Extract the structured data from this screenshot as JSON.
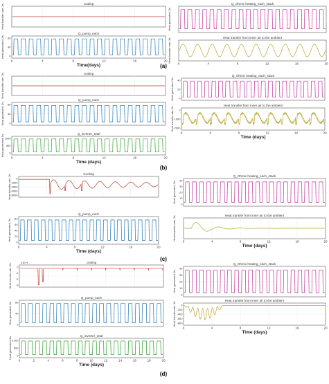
{
  "figure": {
    "panels": [
      {
        "label": "(a)",
        "left": [
          {
            "id": "a-cooling",
            "title": "cooling",
            "ylabel": "Heat transfer rate J/s",
            "xlabel": "",
            "yticks": [],
            "xticks": [],
            "series": {
              "kind": "flat",
              "color": "#c0392b"
            }
          },
          {
            "id": "a-pump",
            "title": "Q_pump_each",
            "ylabel": "Heat generated J/s",
            "xlabel": "Time(days)",
            "yticks": [
              "80",
              "40",
              "0"
            ],
            "xticks": [
              "0",
              "4",
              "8",
              "12",
              "16",
              "20"
            ],
            "series": {
              "kind": "pulse",
              "color": "#1f77b4",
              "pulses": 20
            }
          }
        ],
        "right": [
          {
            "id": "a-ohmic",
            "title": "Q_Ohmic heating_each_stack",
            "ylabel": "Heat generated J/s",
            "xlabel": "",
            "yticks": [],
            "xticks": [],
            "series": {
              "kind": "pulse",
              "color": "#c2309b",
              "pulses": 20
            }
          },
          {
            "id": "a-ambient",
            "title": "Heat transfer from inner air to the ambient",
            "ylabel": "Heat transfer rate J/s",
            "xlabel": "",
            "yticks": [],
            "xticks": [
              "0",
              "4",
              "8",
              "12",
              "16",
              "20"
            ],
            "series": {
              "kind": "sine",
              "color": "#b8a636",
              "cycles": 10
            }
          }
        ]
      },
      {
        "label": "(b)",
        "left": [
          {
            "id": "b-cooling",
            "title": "cooling",
            "ylabel": "Heat transfer rate J/s",
            "xlabel": "",
            "yticks": [],
            "xticks": [],
            "series": {
              "kind": "flat",
              "color": "#c0392b"
            }
          },
          {
            "id": "b-pump",
            "title": "Q_pump_each",
            "ylabel": "Heat generated J/s",
            "xlabel": "",
            "yticks": [
              "80",
              "40",
              "0"
            ],
            "xticks": [],
            "series": {
              "kind": "pulse",
              "color": "#1f77b4",
              "pulses": 20
            }
          },
          {
            "id": "b-inverter",
            "title": "Q_inverter_total",
            "ylabel": "Heat generated J/s",
            "xlabel": "Time (days)",
            "yticks": [
              "1000",
              "500",
              "0"
            ],
            "xticks": [
              "0",
              "4",
              "8",
              "12",
              "16",
              "20"
            ],
            "series": {
              "kind": "pulse",
              "color": "#2ca02c",
              "pulses": 20
            }
          }
        ],
        "right": [
          {
            "id": "b-ohmic",
            "title": "Q_Ohmic heating_each_stack",
            "ylabel": "Heat generated J/s",
            "xlabel": "",
            "yticks": [
              "40",
              "20",
              "0"
            ],
            "xticks": [],
            "series": {
              "kind": "pulse",
              "color": "#c2309b",
              "pulses": 20
            }
          },
          {
            "id": "b-ambient",
            "title": "Heat transfer from inner air to the ambient",
            "ylabel": "Heat transfer rate J/s",
            "xlabel": "Time (days)",
            "yticks": [
              "0",
              "-1000",
              "-2000"
            ],
            "xticks": [
              "0",
              "4",
              "8",
              "12",
              "16",
              "20"
            ],
            "series": {
              "kind": "noisy",
              "color": "#b8a636",
              "cycles": 10
            }
          }
        ]
      },
      {
        "label": "(c)",
        "left": [
          {
            "id": "c-cooling",
            "title": "Cooling",
            "ylabel": "Heat transfer rate J/s",
            "xlabel": "",
            "yticks": [
              "0",
              "-2000",
              "-4000",
              "-6000",
              "-8000"
            ],
            "xticks": [],
            "series": {
              "kind": "transient",
              "color": "#c0392b"
            }
          },
          {
            "id": "c-pump",
            "title": "Q_pump_each",
            "ylabel": "Heat generated J/s",
            "xlabel": "Time (days)",
            "yticks": [
              "80",
              "60",
              "40",
              "20",
              "0"
            ],
            "xticks": [
              "0",
              "4",
              "8",
              "12",
              "16",
              "20"
            ],
            "series": {
              "kind": "pulse",
              "color": "#1f77b4",
              "pulses": 20
            }
          }
        ],
        "right": [
          {
            "id": "c-ohmic",
            "title": "Q_Ohmic heating_each_stack",
            "ylabel": "Heat generated J/s",
            "xlabel": "",
            "yticks": [
              "40",
              "30",
              "20",
              "10",
              "0"
            ],
            "xticks": [],
            "series": {
              "kind": "pulse",
              "color": "#c2309b",
              "pulses": 20
            }
          },
          {
            "id": "c-ambient",
            "title": "Heat transfer from inner air to the ambient",
            "ylabel": "Heat transfer rate J/s",
            "xlabel": "Time (days)",
            "yticks": [],
            "xticks": [
              "0",
              "4",
              "8",
              "12",
              "16",
              "20"
            ],
            "series": {
              "kind": "decay",
              "color": "#b8a636"
            }
          }
        ]
      },
      {
        "label": "(d)",
        "left": [
          {
            "id": "d-cooling",
            "title": "cooling",
            "ylabel": "Heat transfer rate J/s",
            "xlabel": "",
            "yticks": [
              "0",
              "-1",
              "-2",
              "-3"
            ],
            "xticks": [],
            "exponent": "x10^4",
            "series": {
              "kind": "spikes",
              "color": "#c0392b"
            }
          },
          {
            "id": "d-pump",
            "title": "Q_pump_each",
            "ylabel": "Heat generated J/s",
            "xlabel": "",
            "yticks": [
              "80",
              "40",
              "0"
            ],
            "xticks": [],
            "series": {
              "kind": "pulse",
              "color": "#1f77b4",
              "pulses": 20
            }
          },
          {
            "id": "d-inverter",
            "title": "Q_inverter_total",
            "ylabel": "Heat generated J/s",
            "xlabel": "Time (days)",
            "yticks": [
              "1000",
              "500",
              "0"
            ],
            "xticks": [
              "0",
              "2",
              "4",
              "6",
              "8",
              "10",
              "12",
              "14",
              "16",
              "18",
              "20"
            ],
            "series": {
              "kind": "pulse",
              "color": "#2ca02c",
              "pulses": 20
            }
          }
        ],
        "right": [
          {
            "id": "d-ohmic",
            "title": "Q_Ohmic heating_each_stack",
            "ylabel": "Heat generated J/s",
            "xlabel": "",
            "yticks": [
              "40",
              "30",
              "20",
              "10",
              "0"
            ],
            "xticks": [],
            "series": {
              "kind": "pulse",
              "color": "#c2309b",
              "pulses": 20
            }
          },
          {
            "id": "d-ambient",
            "title": "Heat transfer from inner air to the ambient",
            "ylabel": "Heat transfer rate J/s",
            "xlabel": "Time (days)",
            "yticks": [
              "0",
              "-200",
              "-400",
              "-600",
              "-800"
            ],
            "xticks": [
              "0",
              "4",
              "8",
              "12",
              "16",
              "20"
            ],
            "series": {
              "kind": "dip",
              "color": "#b8a636"
            }
          }
        ]
      }
    ]
  },
  "chart_data": [
    {
      "type": "line",
      "panel": "(a)",
      "title": "cooling",
      "ylabel": "Heat transfer rate J/s",
      "x_range": [
        0,
        20
      ],
      "note": "flat constant trace"
    },
    {
      "type": "line",
      "panel": "(a)",
      "title": "Q_pump_each",
      "ylabel": "Heat generated J/s",
      "xlabel": "Time(days)",
      "x_range": [
        0,
        20
      ],
      "ylim": [
        0,
        80
      ],
      "pulses_per_series": 20
    },
    {
      "type": "line",
      "panel": "(a)",
      "title": "Q_Ohmic heating_each_stack",
      "ylabel": "Heat generated J/s",
      "x_range": [
        0,
        20
      ],
      "pulses_per_series": 20
    },
    {
      "type": "line",
      "panel": "(a)",
      "title": "Heat transfer from inner air to the ambient",
      "ylabel": "Heat transfer rate J/s",
      "x_range": [
        0,
        20
      ],
      "cycles": 10
    },
    {
      "type": "line",
      "panel": "(b)",
      "title": "cooling",
      "ylabel": "Heat transfer rate J/s",
      "x_range": [
        0,
        20
      ]
    },
    {
      "type": "line",
      "panel": "(b)",
      "title": "Q_pump_each",
      "ylabel": "Heat generated J/s",
      "ylim": [
        0,
        80
      ],
      "x_range": [
        0,
        20
      ]
    },
    {
      "type": "line",
      "panel": "(b)",
      "title": "Q_inverter_total",
      "ylabel": "Heat generated J/s",
      "xlabel": "Time (days)",
      "ylim": [
        0,
        1000
      ],
      "x_range": [
        0,
        20
      ]
    },
    {
      "type": "line",
      "panel": "(b)",
      "title": "Q_Ohmic heating_each_stack",
      "ylabel": "Heat generated J/s",
      "ylim": [
        0,
        40
      ],
      "x_range": [
        0,
        20
      ]
    },
    {
      "type": "line",
      "panel": "(b)",
      "title": "Heat transfer from inner air to the ambient",
      "ylabel": "Heat transfer rate J/s",
      "xlabel": "Time (days)",
      "ylim": [
        -2000,
        0
      ],
      "x_range": [
        0,
        20
      ]
    },
    {
      "type": "line",
      "panel": "(c)",
      "title": "Cooling",
      "ylabel": "Heat transfer rate J/s",
      "ylim": [
        -8000,
        0
      ],
      "x_range": [
        0,
        20
      ]
    },
    {
      "type": "line",
      "panel": "(c)",
      "title": "Q_pump_each",
      "ylabel": "Heat generated J/s",
      "xlabel": "Time (days)",
      "ylim": [
        0,
        80
      ],
      "x_range": [
        0,
        20
      ]
    },
    {
      "type": "line",
      "panel": "(c)",
      "title": "Q_Ohmic heating_each_stack",
      "ylabel": "Heat generated J/s",
      "ylim": [
        0,
        40
      ],
      "x_range": [
        0,
        20
      ]
    },
    {
      "type": "line",
      "panel": "(c)",
      "title": "Heat transfer from inner air to the ambient",
      "ylabel": "Heat transfer rate J/s",
      "xlabel": "Time (days)",
      "x_range": [
        0,
        20
      ]
    },
    {
      "type": "line",
      "panel": "(d)",
      "title": "cooling",
      "ylabel": "Heat transfer rate J/s",
      "ylim": [
        -30000,
        0
      ],
      "x_range": [
        0,
        20
      ]
    },
    {
      "type": "line",
      "panel": "(d)",
      "title": "Q_pump_each",
      "ylabel": "Heat generated J/s",
      "ylim": [
        0,
        80
      ],
      "x_range": [
        0,
        20
      ]
    },
    {
      "type": "line",
      "panel": "(d)",
      "title": "Q_inverter_total",
      "ylabel": "Heat generated J/s",
      "xlabel": "Time (days)",
      "ylim": [
        0,
        1000
      ],
      "x_range": [
        0,
        20
      ]
    },
    {
      "type": "line",
      "panel": "(d)",
      "title": "Q_Ohmic heating_each_stack",
      "ylabel": "Heat generated J/s",
      "ylim": [
        0,
        40
      ],
      "x_range": [
        0,
        20
      ]
    },
    {
      "type": "line",
      "panel": "(d)",
      "title": "Heat transfer from inner air to the ambient",
      "ylabel": "Heat transfer rate J/s",
      "xlabel": "Time (days)",
      "ylim": [
        -800,
        0
      ],
      "x_range": [
        0,
        20
      ]
    }
  ]
}
